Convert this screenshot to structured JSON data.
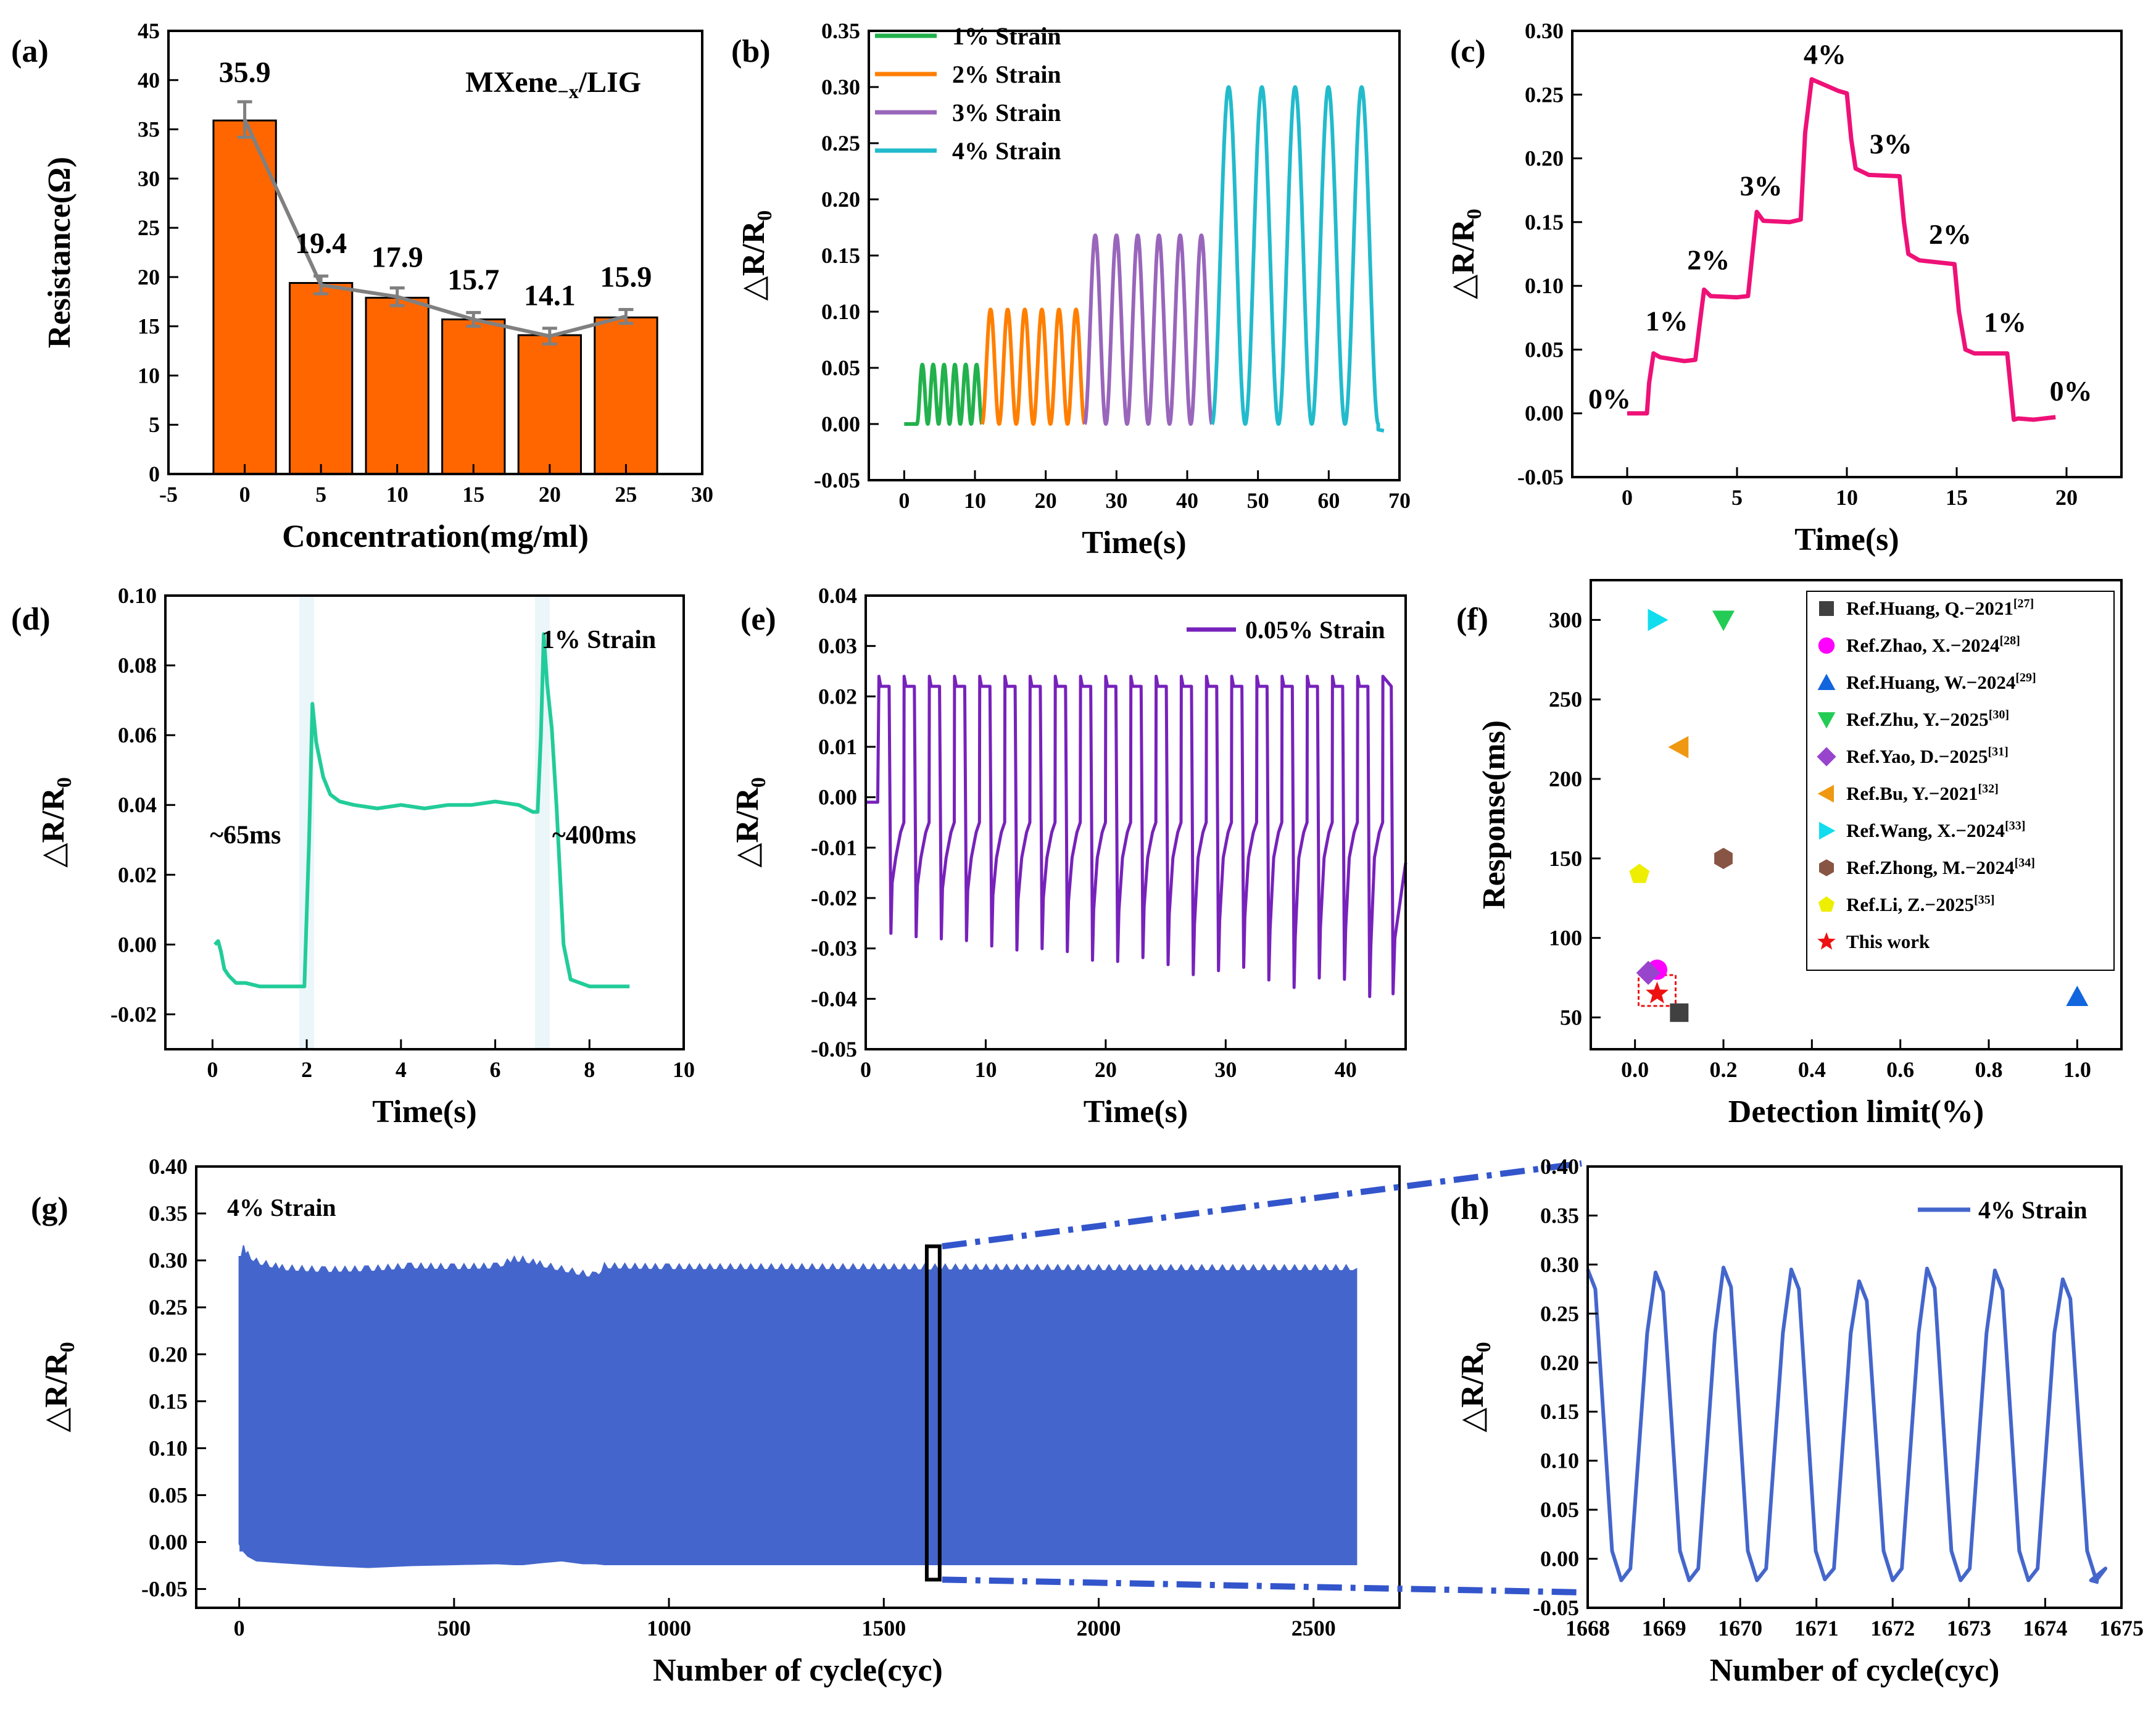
{
  "figure": {
    "background": "#ffffff"
  },
  "chart_data": [
    {
      "id": "a",
      "panel_label": "(a)",
      "type": "bar",
      "xlabel": "Concentration(mg/ml)",
      "ylabel": "Resistance(Ω)",
      "xlim": [
        -5,
        30
      ],
      "ylim": [
        0,
        45
      ],
      "xticks": [
        -5,
        0,
        5,
        10,
        15,
        20,
        25,
        30
      ],
      "yticks": [
        0,
        5,
        10,
        15,
        20,
        25,
        30,
        35,
        40,
        45
      ],
      "annotation": "MXene",
      "annotation_sub": "−x",
      "annotation_suffix": "/LIG",
      "categories": [
        0,
        5,
        10,
        15,
        20,
        25
      ],
      "values": [
        35.9,
        19.4,
        17.9,
        15.7,
        14.1,
        15.9
      ],
      "value_labels": [
        "35.9",
        "19.4",
        "17.9",
        "15.7",
        "14.1",
        "15.9"
      ],
      "line_values": [
        36.0,
        19.2,
        18.0,
        15.7,
        14.0,
        16.0
      ],
      "errors": [
        1.8,
        0.9,
        0.9,
        0.7,
        0.8,
        0.7
      ],
      "bar_color": "#ff6600",
      "line_color": "#808080"
    },
    {
      "id": "b",
      "panel_label": "(b)",
      "type": "line",
      "xlabel": "Time(s)",
      "ylabel": "△R/R",
      "xlim": [
        -5,
        70
      ],
      "ylim": [
        -0.05,
        0.35
      ],
      "xticks": [
        0,
        10,
        20,
        30,
        40,
        50,
        60,
        70
      ],
      "yticks": [
        -0.05,
        0.0,
        0.05,
        0.1,
        0.15,
        0.2,
        0.25,
        0.3,
        0.35
      ],
      "ytick_labels": [
        "-0.05",
        "0.00",
        "0.05",
        "0.10",
        "0.15",
        "0.20",
        "0.25",
        "0.30",
        "0.35"
      ],
      "legend_position": "top-left",
      "series": [
        {
          "name": "1% Strain",
          "color": "#22b14c",
          "start": 1.8,
          "end": 11.0,
          "cycles": 6,
          "amplitude": 0.053
        },
        {
          "name": "2% Strain",
          "color": "#ff7f00",
          "start": 11.0,
          "end": 25.5,
          "cycles": 6,
          "amplitude": 0.102
        },
        {
          "name": "3% Strain",
          "color": "#9966bb",
          "start": 25.5,
          "end": 43.5,
          "cycles": 6,
          "amplitude": 0.168
        },
        {
          "name": "4% Strain",
          "color": "#22bbcc",
          "start": 43.5,
          "end": 67.0,
          "cycles": 5,
          "amplitude": 0.3
        }
      ]
    },
    {
      "id": "c",
      "panel_label": "(c)",
      "type": "line",
      "xlabel": "Time(s)",
      "ylabel": "△R/R",
      "xlim": [
        -2.5,
        22.5
      ],
      "ylim": [
        -0.05,
        0.3
      ],
      "xticks": [
        0,
        5,
        10,
        15,
        20
      ],
      "yticks": [
        -0.05,
        0.0,
        0.05,
        0.1,
        0.15,
        0.2,
        0.25,
        0.3
      ],
      "ytick_labels": [
        "-0.05",
        "0.00",
        "0.05",
        "0.10",
        "0.15",
        "0.20",
        "0.25",
        "0.30"
      ],
      "color": "#ee1177",
      "x": [
        0,
        0.9,
        1.0,
        1.2,
        1.5,
        2.6,
        3.1,
        3.3,
        3.5,
        3.8,
        5.0,
        5.5,
        5.7,
        5.9,
        6.2,
        7.4,
        7.9,
        8.1,
        8.4,
        9.6,
        10.0,
        10.2,
        10.4,
        11.0,
        12.4,
        12.6,
        12.8,
        13.3,
        14.9,
        15.1,
        15.4,
        15.8,
        17.3,
        17.6,
        17.8,
        18.5,
        19.5
      ],
      "y": [
        0.0,
        0.0,
        0.024,
        0.047,
        0.044,
        0.041,
        0.042,
        0.07,
        0.097,
        0.092,
        0.091,
        0.092,
        0.125,
        0.158,
        0.151,
        0.15,
        0.152,
        0.22,
        0.262,
        0.253,
        0.251,
        0.215,
        0.192,
        0.187,
        0.186,
        0.15,
        0.125,
        0.12,
        0.117,
        0.08,
        0.05,
        0.047,
        0.047,
        -0.005,
        -0.004,
        -0.005,
        -0.003
      ],
      "annotations": [
        {
          "text": "0%",
          "x": -0.8,
          "y": 0.004
        },
        {
          "text": "1%",
          "x": 1.8,
          "y": 0.065
        },
        {
          "text": "2%",
          "x": 3.7,
          "y": 0.113
        },
        {
          "text": "3%",
          "x": 6.1,
          "y": 0.171
        },
        {
          "text": "4%",
          "x": 9.0,
          "y": 0.274
        },
        {
          "text": "3%",
          "x": 12.0,
          "y": 0.204
        },
        {
          "text": "2%",
          "x": 14.7,
          "y": 0.133
        },
        {
          "text": "1%",
          "x": 17.2,
          "y": 0.064
        },
        {
          "text": "0%",
          "x": 20.2,
          "y": 0.01
        }
      ]
    },
    {
      "id": "d",
      "panel_label": "(d)",
      "type": "line",
      "xlabel": "Time(s)",
      "ylabel": "△R/R",
      "xlim": [
        -1,
        10
      ],
      "ylim": [
        -0.03,
        0.1
      ],
      "xticks": [
        0,
        2,
        4,
        6,
        8,
        10
      ],
      "yticks": [
        -0.02,
        0.0,
        0.02,
        0.04,
        0.06,
        0.08,
        0.1
      ],
      "ytick_labels": [
        "-0.02",
        "0.00",
        "0.02",
        "0.04",
        "0.06",
        "0.08",
        "0.10"
      ],
      "color": "#22cc99",
      "x": [
        0.05,
        0.12,
        0.18,
        0.25,
        0.35,
        0.5,
        0.7,
        1.0,
        1.4,
        1.8,
        1.95,
        2.05,
        2.12,
        2.2,
        2.35,
        2.5,
        2.7,
        3.0,
        3.5,
        4.0,
        4.5,
        5.0,
        5.5,
        6.0,
        6.5,
        6.8,
        6.9,
        6.97,
        7.03,
        7.1,
        7.2,
        7.3,
        7.45,
        7.6,
        8.0,
        8.5,
        8.85
      ],
      "y": [
        0.0,
        0.001,
        -0.002,
        -0.007,
        -0.009,
        -0.011,
        -0.011,
        -0.012,
        -0.012,
        -0.012,
        -0.012,
        0.03,
        0.069,
        0.058,
        0.048,
        0.043,
        0.041,
        0.04,
        0.039,
        0.04,
        0.039,
        0.04,
        0.04,
        0.041,
        0.04,
        0.038,
        0.038,
        0.06,
        0.089,
        0.075,
        0.062,
        0.04,
        0.0,
        -0.01,
        -0.012,
        -0.012,
        -0.012
      ],
      "response_marks": [
        2.0,
        7.0
      ],
      "annotations": [
        {
          "text": "1% Strain",
          "x": 8.2,
          "y": 0.085
        },
        {
          "text": "~65ms",
          "x": 0.7,
          "y": 0.029
        },
        {
          "text": "~400ms",
          "x": 8.1,
          "y": 0.029
        }
      ]
    },
    {
      "id": "e",
      "panel_label": "(e)",
      "type": "line",
      "xlabel": "Time(s)",
      "ylabel": "△R/R",
      "xlim": [
        0,
        45
      ],
      "ylim": [
        -0.05,
        0.04
      ],
      "xticks": [
        0,
        10,
        20,
        30,
        40
      ],
      "yticks": [
        -0.05,
        -0.04,
        -0.03,
        -0.02,
        -0.01,
        0.0,
        0.01,
        0.02,
        0.03,
        0.04
      ],
      "ytick_labels": [
        "-0.05",
        "-0.04",
        "-0.03",
        "-0.02",
        "-0.01",
        "0.00",
        "0.01",
        "0.02",
        "0.03",
        "0.04"
      ],
      "color": "#7722bb",
      "legend_position": "top-right",
      "legend": "0.05% Strain",
      "first_cycle": 1.1,
      "period": 2.1,
      "cycles": 20,
      "high": 0.022,
      "trough_start": -0.027,
      "trough_end": -0.04
    },
    {
      "id": "f",
      "panel_label": "(f)",
      "type": "scatter",
      "xlabel": "Detection limit(%)",
      "ylabel": "Response(ms)",
      "xlim": [
        -0.1,
        1.1
      ],
      "ylim": [
        30,
        325
      ],
      "xticks": [
        0.0,
        0.2,
        0.4,
        0.6,
        0.8,
        1.0
      ],
      "xtick_labels": [
        "0.0",
        "0.2",
        "0.4",
        "0.6",
        "0.8",
        "1.0"
      ],
      "yticks": [
        50,
        100,
        150,
        200,
        250,
        300
      ],
      "legend_position": "top-right",
      "series": [
        {
          "name": "Ref.Huang, Q.−2021",
          "ref": "[27]",
          "marker": "square",
          "color": "#404040",
          "x": 0.1,
          "y": 53
        },
        {
          "name": "Ref.Zhao, X.−2024",
          "ref": "[28]",
          "marker": "circle",
          "color": "#ff00ff",
          "x": 0.05,
          "y": 80
        },
        {
          "name": "Ref.Huang, W.−2024",
          "ref": "[29]",
          "marker": "triangle-up",
          "color": "#1166dd",
          "x": 1.0,
          "y": 63
        },
        {
          "name": "Ref.Zhu, Y.−2025",
          "ref": "[30]",
          "marker": "triangle-down",
          "color": "#22cc55",
          "x": 0.2,
          "y": 300
        },
        {
          "name": "Ref.Yao, D.−2025",
          "ref": "[31]",
          "marker": "diamond",
          "color": "#9944cc",
          "x": 0.03,
          "y": 78
        },
        {
          "name": "Ref.Bu, Y.−2021",
          "ref": "[32]",
          "marker": "triangle-left",
          "color": "#ee9911",
          "x": 0.1,
          "y": 220
        },
        {
          "name": "Ref.Wang, X.−2024",
          "ref": "[33]",
          "marker": "triangle-right",
          "color": "#11ddee",
          "x": 0.05,
          "y": 300
        },
        {
          "name": "Ref.Zhong, M.−2024",
          "ref": "[34]",
          "marker": "hexagon",
          "color": "#885544",
          "x": 0.2,
          "y": 150
        },
        {
          "name": "Ref.Li, Z.−2025",
          "ref": "[35]",
          "marker": "pentagon",
          "color": "#eeee00",
          "x": 0.01,
          "y": 140
        },
        {
          "name": "This work",
          "ref": "",
          "marker": "star",
          "color": "#ee1111",
          "x": 0.05,
          "y": 65
        }
      ]
    },
    {
      "id": "g",
      "panel_label": "(g)",
      "type": "area",
      "xlabel": "Number of cycle(cyc)",
      "ylabel": "△R/R",
      "xlim": [
        -100,
        2700
      ],
      "ylim": [
        -0.07,
        0.4
      ],
      "xticks": [
        0,
        500,
        1000,
        1500,
        2000,
        2500
      ],
      "yticks": [
        -0.05,
        0.0,
        0.05,
        0.1,
        0.15,
        0.2,
        0.25,
        0.3,
        0.35,
        0.4
      ],
      "ytick_labels": [
        "-0.05",
        "0.00",
        "0.05",
        "0.10",
        "0.15",
        "0.20",
        "0.25",
        "0.30",
        "0.35",
        "0.40"
      ],
      "color": "#4466cc",
      "legend": "4% Strain",
      "envelope_x": [
        0,
        10,
        20,
        40,
        100,
        200,
        300,
        400,
        500,
        600,
        640,
        660,
        700,
        750,
        800,
        830,
        850,
        1000,
        1500,
        2000,
        2600
      ],
      "envelope_top": [
        0.3,
        0.312,
        0.305,
        0.298,
        0.291,
        0.289,
        0.29,
        0.293,
        0.292,
        0.293,
        0.3,
        0.3,
        0.295,
        0.29,
        0.285,
        0.283,
        0.293,
        0.292,
        0.292,
        0.291,
        0.291
      ],
      "envelope_bottom": [
        -0.002,
        -0.01,
        -0.015,
        -0.02,
        -0.022,
        -0.025,
        -0.027,
        -0.025,
        -0.024,
        -0.023,
        -0.024,
        -0.024,
        -0.022,
        -0.02,
        -0.023,
        -0.023,
        -0.024,
        -0.024,
        -0.024,
        -0.024,
        -0.024
      ],
      "zoom_box": {
        "x1": 1600,
        "x2": 1630,
        "y1": -0.04,
        "y2": 0.315
      }
    },
    {
      "id": "h",
      "panel_label": "(h)",
      "type": "line",
      "xlabel": "Number of cycle(cyc)",
      "ylabel": "△R/R",
      "xlim": [
        1668,
        1675
      ],
      "ylim": [
        -0.05,
        0.4
      ],
      "xticks": [
        1668,
        1669,
        1670,
        1671,
        1672,
        1673,
        1674,
        1675
      ],
      "yticks": [
        -0.05,
        0.0,
        0.05,
        0.1,
        0.15,
        0.2,
        0.25,
        0.3,
        0.35,
        0.4
      ],
      "ytick_labels": [
        "-0.05",
        "0.00",
        "0.05",
        "0.10",
        "0.15",
        "0.20",
        "0.25",
        "0.30",
        "0.35",
        "0.40"
      ],
      "color": "#4466cc",
      "legend_position": "top-right",
      "legend": "4% Strain",
      "first_peak": 1668.0,
      "period": 0.89,
      "end": 1674.6,
      "peaks": [
        0.295,
        0.292,
        0.297,
        0.295,
        0.283,
        0.296,
        0.294,
        0.285
      ],
      "troughs": [
        -0.022,
        -0.022,
        -0.022,
        -0.021,
        -0.022,
        -0.022,
        -0.022,
        -0.022
      ]
    }
  ]
}
